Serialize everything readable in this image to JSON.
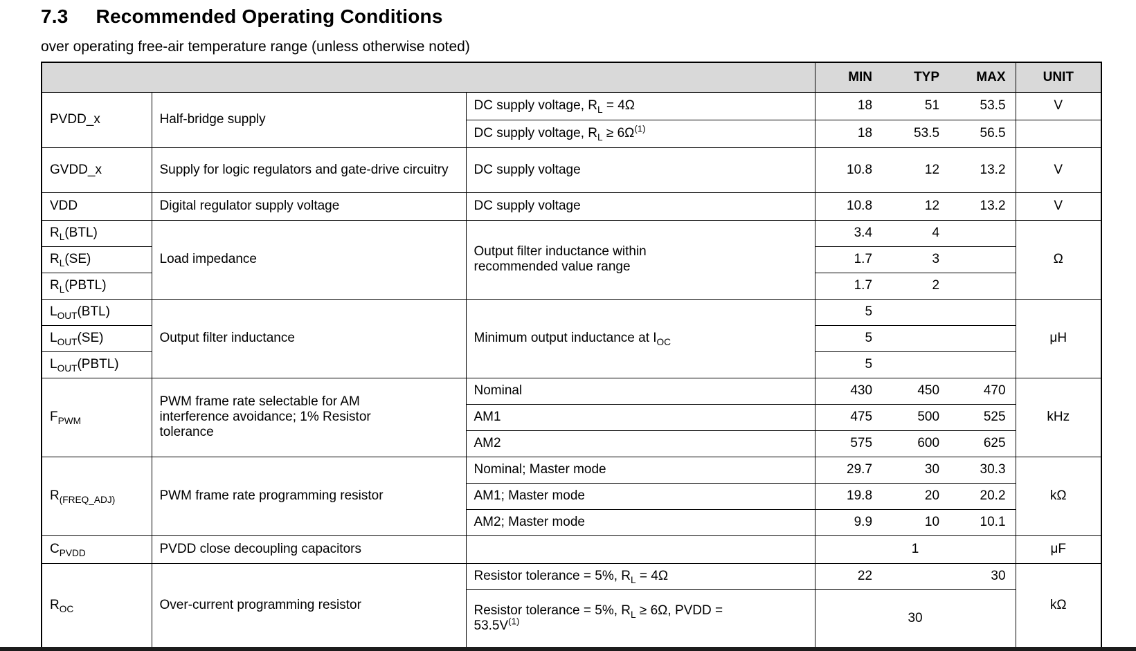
{
  "page": {
    "section_number": "7.3",
    "title": "Recommended Operating Conditions",
    "subtitle": "over operating free-air temperature range (unless otherwise noted)"
  },
  "colors": {
    "header_bg": "#d9d9d9",
    "border": "#000000",
    "bottom_strip": "#1c1c1c"
  },
  "table": {
    "headers": {
      "min": "MIN",
      "typ": "TYP",
      "max": "MAX",
      "unit": "UNIT"
    },
    "groups": [
      {
        "symbol": "PVDD_x",
        "description": "Half-bridge supply",
        "rows": [
          {
            "condition": "DC supply voltage, R_{L} = 4Ω",
            "min": "18",
            "typ": "51",
            "max": "53.5",
            "unit": "V"
          },
          {
            "condition": "DC supply voltage, R_{L} ≥ 6Ω^{(1)}",
            "min": "18",
            "typ": "53.5",
            "max": "56.5",
            "unit": ""
          }
        ]
      },
      {
        "symbol": "GVDD_x",
        "description": "Supply for logic regulators and gate-drive circuitry",
        "rows": [
          {
            "condition": "DC supply voltage",
            "min": "10.8",
            "typ": "12",
            "max": "13.2",
            "unit": "V"
          }
        ]
      },
      {
        "symbol": "VDD",
        "description": "Digital regulator supply voltage",
        "rows": [
          {
            "condition": "DC supply voltage",
            "min": "10.8",
            "typ": "12",
            "max": "13.2",
            "unit": "V"
          }
        ]
      },
      {
        "symbols": [
          "R_{L}(BTL)",
          "R_{L}(SE)",
          "R_{L}(PBTL)"
        ],
        "description": "Load impedance",
        "condition": "Output filter inductance within recommended value range",
        "unit": "Ω",
        "rows": [
          {
            "min": "3.4",
            "typ": "4",
            "max": ""
          },
          {
            "min": "1.7",
            "typ": "3",
            "max": ""
          },
          {
            "min": "1.7",
            "typ": "2",
            "max": ""
          }
        ]
      },
      {
        "symbols": [
          "L_{OUT}(BTL)",
          "L_{OUT}(SE)",
          "L_{OUT}(PBTL)"
        ],
        "description": "Output filter inductance",
        "condition": "Minimum output inductance at I_{OC}",
        "unit": "μH",
        "rows": [
          {
            "min": "5",
            "typ": "",
            "max": ""
          },
          {
            "min": "5",
            "typ": "",
            "max": ""
          },
          {
            "min": "5",
            "typ": "",
            "max": ""
          }
        ]
      },
      {
        "symbol": "F_{PWM}",
        "description": "PWM frame rate selectable for AM interference avoidance; 1% Resistor tolerance",
        "unit": "kHz",
        "rows": [
          {
            "condition": "Nominal",
            "min": "430",
            "typ": "450",
            "max": "470"
          },
          {
            "condition": "AM1",
            "min": "475",
            "typ": "500",
            "max": "525"
          },
          {
            "condition": "AM2",
            "min": "575",
            "typ": "600",
            "max": "625"
          }
        ]
      },
      {
        "symbol": "R_{(FREQ_ADJ)}",
        "description": "PWM frame rate programming resistor",
        "unit": "kΩ",
        "rows": [
          {
            "condition": "Nominal; Master mode",
            "min": "29.7",
            "typ": "30",
            "max": "30.3"
          },
          {
            "condition": "AM1; Master mode",
            "min": "19.8",
            "typ": "20",
            "max": "20.2"
          },
          {
            "condition": "AM2; Master mode",
            "min": "9.9",
            "typ": "10",
            "max": "10.1"
          }
        ]
      },
      {
        "symbol": "C_{PVDD}",
        "description": "PVDD close decoupling capacitors",
        "rows": [
          {
            "condition": "",
            "typ_center": "1",
            "unit": "μF"
          }
        ]
      },
      {
        "symbol": "R_{OC}",
        "description": "Over-current programming resistor",
        "unit": "kΩ",
        "rows": [
          {
            "condition": "Resistor tolerance = 5%, R_{L} = 4Ω",
            "min": "22",
            "typ": "",
            "max": "30"
          },
          {
            "condition": "Resistor tolerance = 5%, R_{L} ≥ 6Ω, PVDD = 53.5V^{(1)}",
            "typ_center": "30"
          }
        ]
      }
    ]
  }
}
